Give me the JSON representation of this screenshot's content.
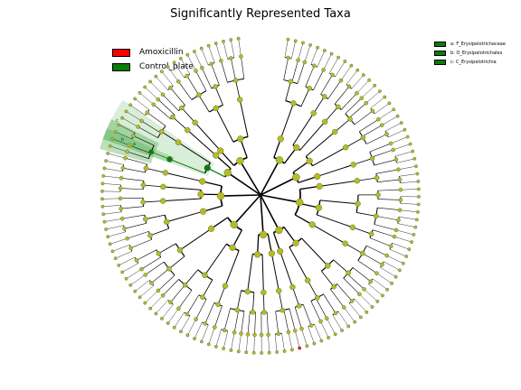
{
  "title": "Significantly Represented Taxa",
  "colors": {
    "Amoxicillin": "#ff0000",
    "Control_plate": "#0a7d0a",
    "node_default": "#b5bd1e",
    "highlight": "#2f9e2f"
  },
  "legend": {
    "groups": [
      {
        "label": "Amoxicillin",
        "color": "#ff0000"
      },
      {
        "label": "Control_plate",
        "color": "#0a7d0a"
      }
    ],
    "clades": [
      {
        "label": "a: F_Erysipelotrichaceae"
      },
      {
        "label": "b: O_Erysipelotrichales"
      },
      {
        "label": "c: C_Erysipelotrichia"
      }
    ]
  },
  "highlight_labels": [
    "a",
    "b",
    "c"
  ]
}
